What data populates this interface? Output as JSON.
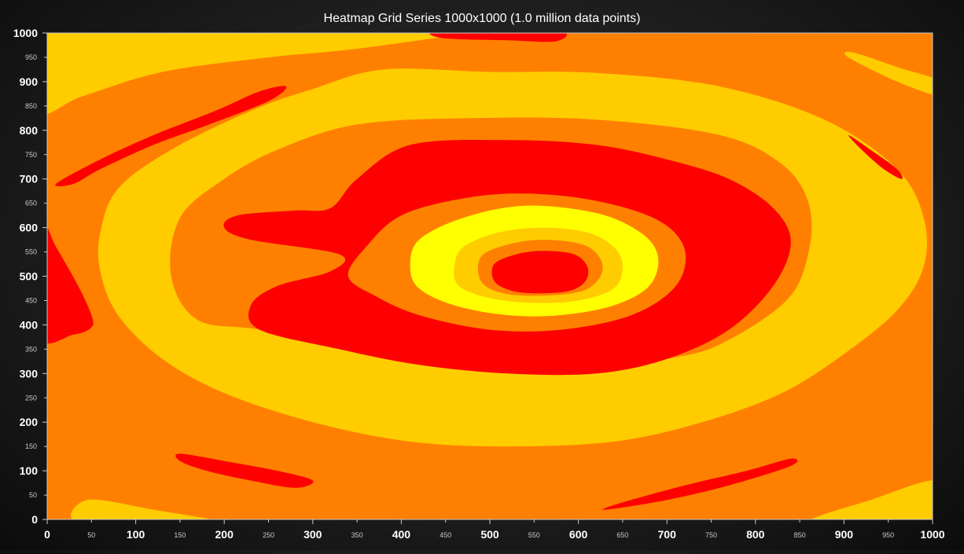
{
  "chart_data": {
    "type": "heatmap",
    "title": "Heatmap Grid Series 1000x1000 (1.0 million data points)",
    "xlabel": "",
    "ylabel": "",
    "xlim": [
      0,
      1000
    ],
    "ylim": [
      0,
      1000
    ],
    "grid": false,
    "legend": "none",
    "x_ticks_major": [
      "0",
      "100",
      "200",
      "300",
      "400",
      "500",
      "600",
      "700",
      "800",
      "900",
      "1000"
    ],
    "x_ticks_minor": [
      "50",
      "150",
      "250",
      "350",
      "450",
      "550",
      "650",
      "750",
      "850",
      "950"
    ],
    "y_ticks_major": [
      "0",
      "100",
      "200",
      "300",
      "400",
      "500",
      "600",
      "700",
      "800",
      "900",
      "1000"
    ],
    "y_ticks_minor": [
      "50",
      "150",
      "250",
      "350",
      "450",
      "550",
      "650",
      "750",
      "850",
      "950"
    ],
    "grid_size": [
      1000,
      1000
    ],
    "point_count": 1000000,
    "color_bands": [
      {
        "level": 1,
        "color": "#FF8000"
      },
      {
        "level": 2,
        "color": "#FFCC00"
      },
      {
        "level": 3,
        "color": "#FF0000"
      },
      {
        "level": 4,
        "color": "#FFFF00"
      }
    ],
    "regions": [
      {
        "band": "#FFCC00",
        "points": [
          [
            -10,
            940
          ],
          [
            120,
            990
          ],
          [
            230,
            1010
          ],
          [
            -10,
            1010
          ]
        ]
      },
      {
        "band": "#FFCC00",
        "points": [
          [
            -10,
            840
          ],
          [
            40,
            870
          ],
          [
            130,
            920
          ],
          [
            250,
            950
          ],
          [
            310,
            960
          ],
          [
            360,
            970
          ],
          [
            440,
            990
          ],
          [
            520,
            1010
          ],
          [
            -10,
            1010
          ]
        ]
      },
      {
        "band": "#FFCC00",
        "points": [
          [
            380,
            925
          ],
          [
            500,
            920
          ],
          [
            620,
            918
          ],
          [
            760,
            890
          ],
          [
            880,
            820
          ],
          [
            960,
            720
          ],
          [
            990,
            620
          ],
          [
            990,
            520
          ],
          [
            960,
            430
          ],
          [
            900,
            340
          ],
          [
            830,
            260
          ],
          [
            740,
            200
          ],
          [
            640,
            160
          ],
          [
            520,
            150
          ],
          [
            410,
            160
          ],
          [
            300,
            200
          ],
          [
            200,
            260
          ],
          [
            130,
            330
          ],
          [
            80,
            420
          ],
          [
            60,
            510
          ],
          [
            60,
            590
          ],
          [
            80,
            680
          ],
          [
            140,
            760
          ],
          [
            230,
            840
          ],
          [
            300,
            885
          ]
        ]
      },
      {
        "band": "#FF8000",
        "points": [
          [
            350,
            812
          ],
          [
            480,
            825
          ],
          [
            620,
            822
          ],
          [
            760,
            790
          ],
          [
            830,
            730
          ],
          [
            860,
            650
          ],
          [
            860,
            550
          ],
          [
            835,
            450
          ],
          [
            760,
            360
          ],
          [
            700,
            330
          ],
          [
            620,
            310
          ],
          [
            540,
            300
          ],
          [
            420,
            318
          ],
          [
            330,
            350
          ],
          [
            240,
            390
          ],
          [
            170,
            410
          ],
          [
            140,
            500
          ],
          [
            150,
            620
          ],
          [
            200,
            700
          ],
          [
            260,
            760
          ]
        ]
      },
      {
        "band": "#FF0000",
        "points": [
          [
            410,
            770
          ],
          [
            520,
            780
          ],
          [
            620,
            770
          ],
          [
            700,
            740
          ],
          [
            770,
            700
          ],
          [
            820,
            640
          ],
          [
            840,
            570
          ],
          [
            820,
            480
          ],
          [
            770,
            390
          ],
          [
            700,
            330
          ],
          [
            620,
            300
          ],
          [
            520,
            300
          ],
          [
            420,
            318
          ],
          [
            330,
            350
          ],
          [
            240,
            390
          ],
          [
            230,
            440
          ],
          [
            260,
            480
          ],
          [
            320,
            510
          ],
          [
            330,
            545
          ],
          [
            230,
            575
          ],
          [
            200,
            600
          ],
          [
            215,
            625
          ],
          [
            280,
            635
          ],
          [
            320,
            640
          ],
          [
            350,
            700
          ]
        ]
      },
      {
        "band": "#FF8000",
        "points": [
          [
            400,
            625
          ],
          [
            470,
            660
          ],
          [
            540,
            670
          ],
          [
            620,
            655
          ],
          [
            690,
            615
          ],
          [
            720,
            555
          ],
          [
            710,
            480
          ],
          [
            660,
            420
          ],
          [
            580,
            390
          ],
          [
            500,
            390
          ],
          [
            420,
            420
          ],
          [
            370,
            460
          ],
          [
            340,
            500
          ],
          [
            360,
            560
          ]
        ]
      },
      {
        "band": "#FFFF00",
        "points": [
          [
            420,
            575
          ],
          [
            470,
            620
          ],
          [
            540,
            645
          ],
          [
            620,
            630
          ],
          [
            670,
            590
          ],
          [
            690,
            540
          ],
          [
            680,
            480
          ],
          [
            640,
            440
          ],
          [
            580,
            420
          ],
          [
            520,
            420
          ],
          [
            460,
            440
          ],
          [
            420,
            475
          ],
          [
            410,
            520
          ]
        ]
      },
      {
        "band": "#FFCC00",
        "points": [
          [
            470,
            560
          ],
          [
            510,
            590
          ],
          [
            560,
            600
          ],
          [
            610,
            590
          ],
          [
            640,
            560
          ],
          [
            650,
            520
          ],
          [
            640,
            475
          ],
          [
            600,
            450
          ],
          [
            550,
            445
          ],
          [
            500,
            455
          ],
          [
            465,
            480
          ],
          [
            460,
            520
          ]
        ]
      },
      {
        "band": "#FF8000",
        "points": [
          [
            490,
            540
          ],
          [
            520,
            565
          ],
          [
            560,
            575
          ],
          [
            605,
            565
          ],
          [
            625,
            535
          ],
          [
            625,
            500
          ],
          [
            605,
            470
          ],
          [
            560,
            460
          ],
          [
            515,
            465
          ],
          [
            490,
            490
          ]
        ]
      },
      {
        "band": "#FF0000",
        "points": [
          [
            505,
            525
          ],
          [
            530,
            545
          ],
          [
            560,
            552
          ],
          [
            595,
            545
          ],
          [
            610,
            520
          ],
          [
            608,
            490
          ],
          [
            590,
            470
          ],
          [
            555,
            465
          ],
          [
            525,
            470
          ],
          [
            505,
            490
          ]
        ]
      },
      {
        "band": "#FF0000",
        "points": [
          [
            10,
            690
          ],
          [
            60,
            740
          ],
          [
            120,
            790
          ],
          [
            190,
            840
          ],
          [
            240,
            880
          ],
          [
            270,
            890
          ],
          [
            250,
            860
          ],
          [
            180,
            810
          ],
          [
            120,
            770
          ],
          [
            60,
            720
          ],
          [
            30,
            690
          ]
        ]
      },
      {
        "band": "#FF0000",
        "points": [
          [
            -10,
            620
          ],
          [
            10,
            560
          ],
          [
            35,
            480
          ],
          [
            50,
            420
          ],
          [
            50,
            395
          ],
          [
            30,
            380
          ],
          [
            -10,
            380
          ]
        ]
      },
      {
        "band": "#FF0000",
        "points": [
          [
            150,
            135
          ],
          [
            200,
            120
          ],
          [
            260,
            100
          ],
          [
            300,
            80
          ],
          [
            280,
            65
          ],
          [
            230,
            80
          ],
          [
            180,
            100
          ],
          [
            150,
            120
          ]
        ]
      },
      {
        "band": "#FF0000",
        "points": [
          [
            630,
            20
          ],
          [
            700,
            40
          ],
          [
            770,
            70
          ],
          [
            840,
            110
          ],
          [
            840,
            125
          ],
          [
            790,
            100
          ],
          [
            720,
            70
          ],
          [
            650,
            35
          ]
        ]
      },
      {
        "band": "#FF0000",
        "points": [
          [
            445,
            990
          ],
          [
            520,
            985
          ],
          [
            575,
            983
          ],
          [
            575,
            1005
          ],
          [
            445,
            1005
          ]
        ]
      },
      {
        "band": "#FF0000",
        "points": [
          [
            905,
            790
          ],
          [
            930,
            760
          ],
          [
            960,
            720
          ],
          [
            965,
            700
          ],
          [
            945,
            720
          ],
          [
            920,
            760
          ]
        ]
      },
      {
        "band": "#FFCC00",
        "points": [
          [
            910,
            960
          ],
          [
            960,
            930
          ],
          [
            1010,
            900
          ],
          [
            1010,
            870
          ],
          [
            960,
            900
          ],
          [
            905,
            950
          ]
        ]
      },
      {
        "band": "#FFCC00",
        "points": [
          [
            40,
            -10
          ],
          [
            45,
            40
          ],
          [
            120,
            20
          ],
          [
            200,
            -10
          ]
        ]
      },
      {
        "band": "#FFCC00",
        "points": [
          [
            860,
            -10
          ],
          [
            930,
            40
          ],
          [
            1010,
            80
          ],
          [
            1010,
            -10
          ]
        ]
      }
    ],
    "annotations": []
  }
}
